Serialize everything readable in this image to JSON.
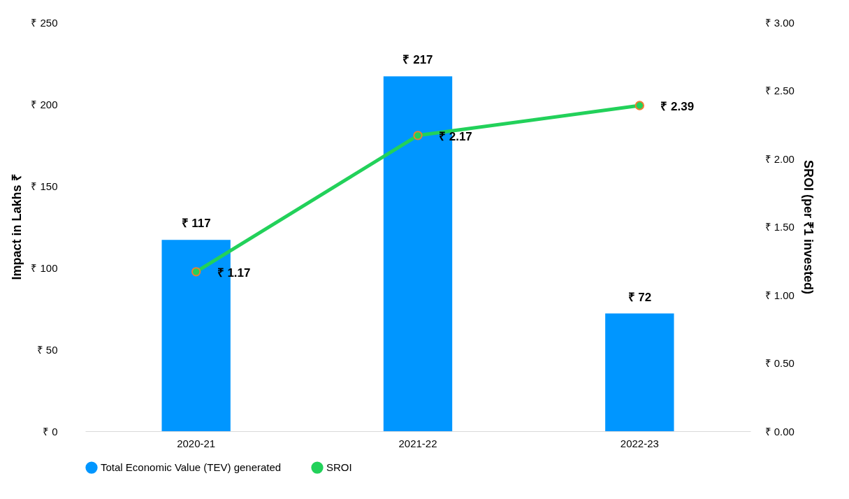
{
  "chart_data": {
    "type": "bar",
    "categories": [
      "2020-21",
      "2021-22",
      "2022-23"
    ],
    "series": [
      {
        "name": "Total Economic Value (TEV) generated",
        "color": "#0096ff",
        "values": [
          117,
          217,
          72
        ],
        "value_labels": [
          "₹ 117",
          "₹ 217",
          "₹ 72"
        ]
      },
      {
        "name": "SROI",
        "type": "line",
        "axis": "y2",
        "color": "#22d15a",
        "marker": "circle",
        "values": [
          1.17,
          2.17,
          2.39
        ],
        "value_labels": [
          "₹ 1.17",
          "₹ 2.17",
          "₹ 2.39"
        ]
      }
    ],
    "ylabel": "Impact in Lakhs ₹",
    "y2label": "SROI (per ₹1 invested)",
    "ylim": [
      0,
      250
    ],
    "yticks": [
      {
        "value": 0,
        "label": "₹ 0"
      },
      {
        "value": 50,
        "label": "₹ 50"
      },
      {
        "value": 100,
        "label": "₹ 100"
      },
      {
        "value": 150,
        "label": "₹ 150"
      },
      {
        "value": 200,
        "label": "₹ 200"
      },
      {
        "value": 250,
        "label": "₹ 250"
      }
    ],
    "y2lim": [
      0,
      3
    ],
    "y2ticks": [
      {
        "value": 0,
        "label": "₹ 0.00"
      },
      {
        "value": 0.5,
        "label": "₹ 0.50"
      },
      {
        "value": 1,
        "label": "₹ 1.00"
      },
      {
        "value": 1.5,
        "label": "₹ 1.50"
      },
      {
        "value": 2,
        "label": "₹ 2.00"
      },
      {
        "value": 2.5,
        "label": "₹ 2.50"
      },
      {
        "value": 3,
        "label": "₹ 3.00"
      }
    ],
    "grid": false,
    "legend": "bottom"
  }
}
